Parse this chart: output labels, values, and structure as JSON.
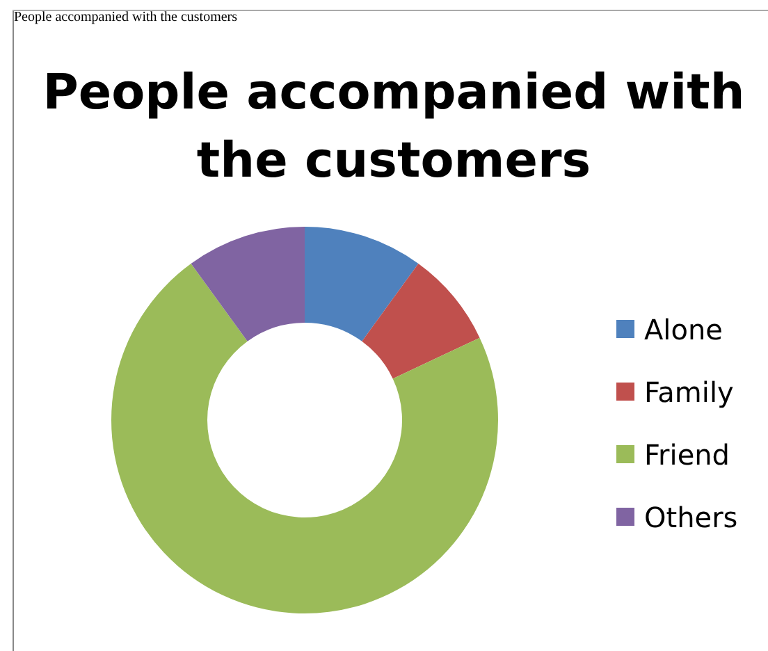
{
  "chart_data": {
    "type": "donut",
    "title": "People accompanied with the customers",
    "annotations": [
      "People accompanied with the customers"
    ],
    "categories": [
      "Alone",
      "Family",
      "Friend",
      "Others"
    ],
    "values": [
      10,
      8,
      72,
      10
    ],
    "colors": [
      "#4f81bd",
      "#c0504d",
      "#9bbb59",
      "#8064a2"
    ],
    "legend": "right"
  }
}
